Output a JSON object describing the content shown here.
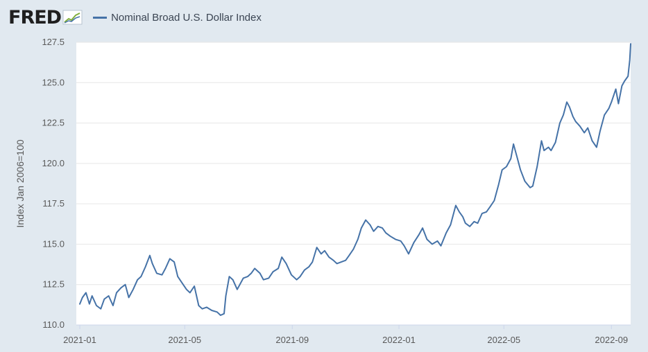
{
  "app": {
    "logo_text": "FRED",
    "logo_icon": "trend-chart-icon"
  },
  "colors": {
    "series": "#4572a7",
    "background": "#e1e9f0",
    "plot_bg": "#ffffff",
    "grid": "#e6e6e6"
  },
  "chart_data": {
    "type": "line",
    "title": "",
    "xlabel": "",
    "ylabel": "Index Jan 2006=100",
    "ylim": [
      110.0,
      127.5
    ],
    "y_ticks": [
      "110.0",
      "112.5",
      "115.0",
      "117.5",
      "120.0",
      "122.5",
      "125.0",
      "127.5"
    ],
    "x_ticks": [
      "2021-01",
      "2021-05",
      "2021-09",
      "2022-01",
      "2022-05",
      "2022-09"
    ],
    "x_range": [
      "2020-12-28",
      "2022-09-23"
    ],
    "legend": "top-left",
    "series": [
      {
        "name": "Nominal Broad U.S. Dollar Index",
        "color": "#4572a7",
        "points": [
          [
            "2021-01-01",
            111.3
          ],
          [
            "2021-01-04",
            111.7
          ],
          [
            "2021-01-08",
            112.0
          ],
          [
            "2021-01-12",
            111.3
          ],
          [
            "2021-01-15",
            111.8
          ],
          [
            "2021-01-20",
            111.2
          ],
          [
            "2021-01-25",
            111.0
          ],
          [
            "2021-01-29",
            111.6
          ],
          [
            "2021-02-03",
            111.8
          ],
          [
            "2021-02-08",
            111.2
          ],
          [
            "2021-02-12",
            112.0
          ],
          [
            "2021-02-17",
            112.3
          ],
          [
            "2021-02-22",
            112.5
          ],
          [
            "2021-02-26",
            111.7
          ],
          [
            "2021-03-03",
            112.2
          ],
          [
            "2021-03-08",
            112.8
          ],
          [
            "2021-03-12",
            113.0
          ],
          [
            "2021-03-17",
            113.6
          ],
          [
            "2021-03-22",
            114.3
          ],
          [
            "2021-03-25",
            113.8
          ],
          [
            "2021-03-30",
            113.2
          ],
          [
            "2021-04-05",
            113.1
          ],
          [
            "2021-04-09",
            113.5
          ],
          [
            "2021-04-14",
            114.1
          ],
          [
            "2021-04-19",
            113.9
          ],
          [
            "2021-04-23",
            113.0
          ],
          [
            "2021-04-28",
            112.6
          ],
          [
            "2021-05-03",
            112.2
          ],
          [
            "2021-05-07",
            112.0
          ],
          [
            "2021-05-12",
            112.4
          ],
          [
            "2021-05-17",
            111.2
          ],
          [
            "2021-05-21",
            111.0
          ],
          [
            "2021-05-26",
            111.1
          ],
          [
            "2021-06-01",
            110.9
          ],
          [
            "2021-06-07",
            110.8
          ],
          [
            "2021-06-11",
            110.6
          ],
          [
            "2021-06-15",
            110.7
          ],
          [
            "2021-06-17",
            111.8
          ],
          [
            "2021-06-21",
            113.0
          ],
          [
            "2021-06-25",
            112.8
          ],
          [
            "2021-06-30",
            112.2
          ],
          [
            "2021-07-07",
            112.9
          ],
          [
            "2021-07-12",
            113.0
          ],
          [
            "2021-07-16",
            113.2
          ],
          [
            "2021-07-20",
            113.5
          ],
          [
            "2021-07-26",
            113.2
          ],
          [
            "2021-07-30",
            112.8
          ],
          [
            "2021-08-05",
            112.9
          ],
          [
            "2021-08-10",
            113.3
          ],
          [
            "2021-08-16",
            113.5
          ],
          [
            "2021-08-20",
            114.2
          ],
          [
            "2021-08-25",
            113.8
          ],
          [
            "2021-08-31",
            113.1
          ],
          [
            "2021-09-06",
            112.8
          ],
          [
            "2021-09-10",
            113.0
          ],
          [
            "2021-09-15",
            113.4
          ],
          [
            "2021-09-20",
            113.6
          ],
          [
            "2021-09-24",
            113.9
          ],
          [
            "2021-09-29",
            114.8
          ],
          [
            "2021-10-04",
            114.4
          ],
          [
            "2021-10-08",
            114.6
          ],
          [
            "2021-10-13",
            114.2
          ],
          [
            "2021-10-18",
            114.0
          ],
          [
            "2021-10-22",
            113.8
          ],
          [
            "2021-10-27",
            113.9
          ],
          [
            "2021-11-01",
            114.0
          ],
          [
            "2021-11-05",
            114.3
          ],
          [
            "2021-11-10",
            114.7
          ],
          [
            "2021-11-15",
            115.3
          ],
          [
            "2021-11-19",
            116.0
          ],
          [
            "2021-11-24",
            116.5
          ],
          [
            "2021-11-29",
            116.2
          ],
          [
            "2021-12-03",
            115.8
          ],
          [
            "2021-12-08",
            116.1
          ],
          [
            "2021-12-13",
            116.0
          ],
          [
            "2021-12-17",
            115.7
          ],
          [
            "2021-12-22",
            115.5
          ],
          [
            "2021-12-28",
            115.3
          ],
          [
            "2022-01-03",
            115.2
          ],
          [
            "2022-01-07",
            114.9
          ],
          [
            "2022-01-12",
            114.4
          ],
          [
            "2022-01-18",
            115.1
          ],
          [
            "2022-01-24",
            115.6
          ],
          [
            "2022-01-28",
            116.0
          ],
          [
            "2022-02-02",
            115.3
          ],
          [
            "2022-02-08",
            115.0
          ],
          [
            "2022-02-14",
            115.2
          ],
          [
            "2022-02-18",
            114.9
          ],
          [
            "2022-02-24",
            115.7
          ],
          [
            "2022-03-01",
            116.2
          ],
          [
            "2022-03-07",
            117.4
          ],
          [
            "2022-03-11",
            117.0
          ],
          [
            "2022-03-15",
            116.7
          ],
          [
            "2022-03-18",
            116.3
          ],
          [
            "2022-03-23",
            116.1
          ],
          [
            "2022-03-28",
            116.4
          ],
          [
            "2022-04-01",
            116.3
          ],
          [
            "2022-04-06",
            116.9
          ],
          [
            "2022-04-11",
            117.0
          ],
          [
            "2022-04-15",
            117.3
          ],
          [
            "2022-04-20",
            117.7
          ],
          [
            "2022-04-25",
            118.7
          ],
          [
            "2022-04-29",
            119.6
          ],
          [
            "2022-05-04",
            119.8
          ],
          [
            "2022-05-09",
            120.3
          ],
          [
            "2022-05-12",
            121.2
          ],
          [
            "2022-05-16",
            120.4
          ],
          [
            "2022-05-20",
            119.6
          ],
          [
            "2022-05-25",
            118.9
          ],
          [
            "2022-05-31",
            118.5
          ],
          [
            "2022-06-03",
            118.6
          ],
          [
            "2022-06-08",
            119.8
          ],
          [
            "2022-06-13",
            121.4
          ],
          [
            "2022-06-16",
            120.8
          ],
          [
            "2022-06-21",
            121.0
          ],
          [
            "2022-06-24",
            120.8
          ],
          [
            "2022-06-29",
            121.3
          ],
          [
            "2022-07-04",
            122.5
          ],
          [
            "2022-07-08",
            123.0
          ],
          [
            "2022-07-12",
            123.8
          ],
          [
            "2022-07-15",
            123.5
          ],
          [
            "2022-07-19",
            122.9
          ],
          [
            "2022-07-22",
            122.6
          ],
          [
            "2022-07-27",
            122.3
          ],
          [
            "2022-08-01",
            121.9
          ],
          [
            "2022-08-05",
            122.2
          ],
          [
            "2022-08-10",
            121.4
          ],
          [
            "2022-08-15",
            121.0
          ],
          [
            "2022-08-19",
            122.0
          ],
          [
            "2022-08-24",
            123.0
          ],
          [
            "2022-08-29",
            123.4
          ],
          [
            "2022-09-01",
            123.8
          ],
          [
            "2022-09-06",
            124.6
          ],
          [
            "2022-09-09",
            123.7
          ],
          [
            "2022-09-13",
            124.8
          ],
          [
            "2022-09-16",
            125.1
          ],
          [
            "2022-09-20",
            125.4
          ],
          [
            "2022-09-22",
            126.4
          ],
          [
            "2022-09-23",
            127.4
          ]
        ]
      }
    ]
  }
}
